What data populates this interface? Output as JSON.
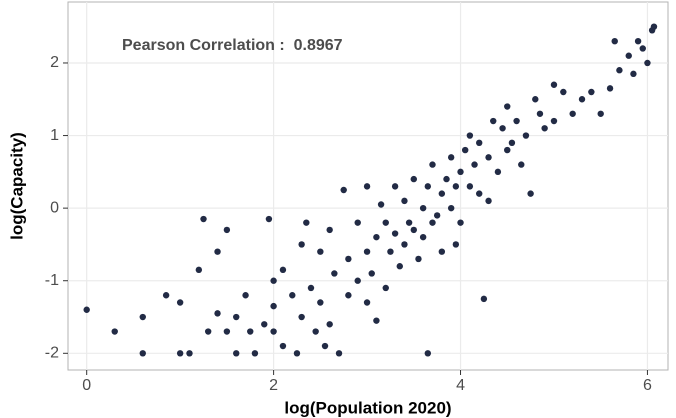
{
  "chart_data": {
    "type": "scatter",
    "xlabel": "log(Population 2020)",
    "ylabel": "log(Capacity)",
    "annotation": "Pearson Correlation :  0.8967",
    "color": "#222b45",
    "annotation_color": "#a52a2a",
    "grid": true,
    "xlim": [
      -0.2,
      6.22
    ],
    "ylim": [
      -2.23,
      2.84
    ],
    "xticks": [
      0,
      2,
      4,
      6
    ],
    "yticks": [
      -2,
      -1,
      0,
      1,
      2
    ],
    "x": [
      0,
      0.3,
      0.6,
      0.6,
      0.85,
      1.0,
      1.1,
      1.0,
      1.2,
      1.25,
      1.3,
      1.4,
      1.4,
      1.5,
      1.5,
      1.6,
      1.6,
      1.7,
      1.8,
      1.9,
      2.0,
      2.0,
      1.95,
      2.1,
      2.1,
      2.2,
      2.3,
      2.3,
      2.4,
      2.45,
      2.5,
      2.5,
      2.6,
      2.6,
      2.65,
      2.7,
      2.75,
      2.8,
      2.8,
      2.9,
      2.9,
      3.0,
      3.0,
      3.0,
      3.05,
      3.1,
      3.15,
      3.2,
      3.2,
      3.25,
      3.3,
      3.3,
      3.35,
      3.4,
      3.4,
      3.45,
      3.5,
      3.5,
      3.55,
      3.6,
      3.6,
      3.65,
      3.65,
      3.7,
      3.7,
      3.75,
      3.8,
      3.8,
      3.85,
      3.9,
      3.9,
      3.95,
      4.0,
      4.0,
      4.05,
      4.1,
      4.1,
      4.15,
      4.2,
      4.2,
      4.25,
      4.3,
      4.35,
      4.4,
      4.45,
      4.5,
      4.5,
      4.55,
      4.6,
      4.65,
      4.7,
      4.75,
      4.8,
      4.85,
      4.9,
      5.0,
      5.1,
      5.2,
      5.3,
      5.4,
      5.5,
      5.6,
      5.7,
      5.8,
      5.85,
      5.95,
      6.0,
      6.05,
      6.07,
      5.65,
      5.9,
      5.0,
      4.3,
      2.25,
      2.55,
      1.75,
      3.1,
      2.35,
      3.95,
      2.0
    ],
    "y": [
      -1.4,
      -1.7,
      -2.0,
      -1.5,
      -1.2,
      -2.0,
      -2.0,
      -1.3,
      -0.85,
      -0.15,
      -1.7,
      -0.6,
      -1.45,
      -1.7,
      -0.3,
      -2.0,
      -1.5,
      -1.2,
      -2.0,
      -1.6,
      -1.7,
      -1.0,
      -0.15,
      -0.85,
      -1.9,
      -1.2,
      -0.5,
      -1.5,
      -1.1,
      -1.7,
      -0.6,
      -1.3,
      -0.3,
      -1.6,
      -0.9,
      -2.0,
      0.25,
      -1.2,
      -0.7,
      -0.2,
      -1.0,
      -1.3,
      -0.6,
      0.3,
      -0.9,
      -0.4,
      0.05,
      -1.1,
      -0.2,
      -0.6,
      0.3,
      -0.35,
      -0.8,
      0.1,
      -0.5,
      -0.2,
      0.4,
      -0.3,
      -0.7,
      0.0,
      -0.4,
      0.3,
      -2.0,
      -0.2,
      0.6,
      -0.1,
      0.2,
      -0.6,
      0.4,
      0.0,
      0.7,
      0.3,
      0.5,
      -0.2,
      0.8,
      0.3,
      1.0,
      0.6,
      0.2,
      0.9,
      -1.25,
      0.7,
      1.2,
      0.5,
      1.1,
      0.8,
      1.4,
      0.9,
      1.2,
      0.6,
      1.0,
      0.2,
      1.5,
      1.3,
      1.1,
      1.2,
      1.6,
      1.3,
      1.5,
      1.6,
      1.3,
      1.65,
      1.9,
      2.1,
      1.85,
      2.2,
      2.0,
      2.45,
      2.5,
      2.3,
      2.3,
      1.7,
      0.1,
      -2.0,
      -1.9,
      -1.7,
      -1.55,
      -0.2,
      -0.5,
      -1.35
    ]
  }
}
